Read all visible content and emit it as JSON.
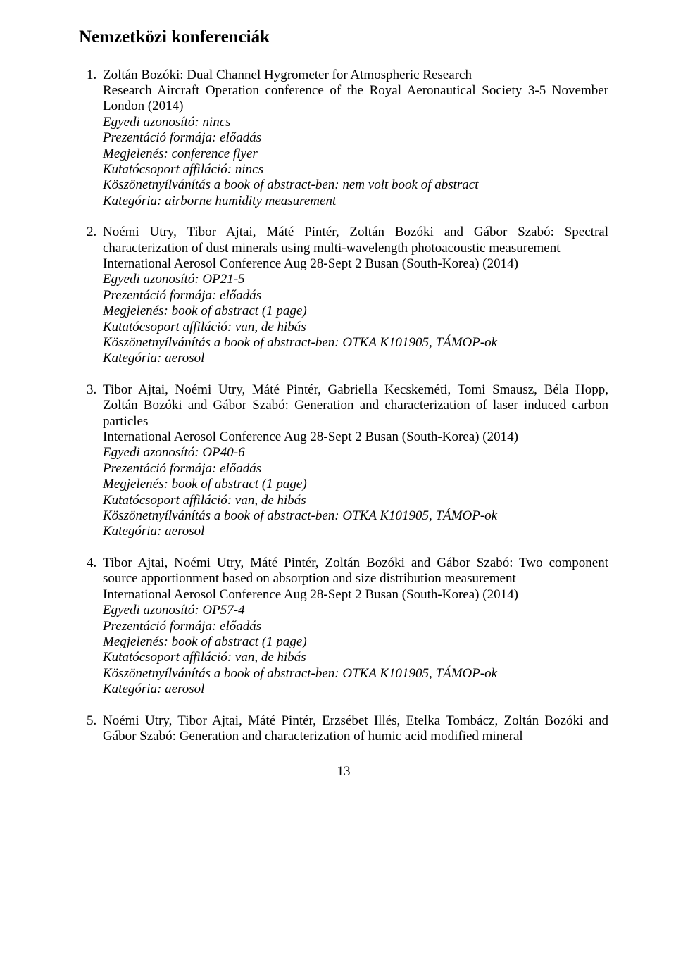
{
  "heading": "Nemzetközi konferenciák",
  "entries": [
    {
      "title": "Zoltán Bozóki: Dual Channel Hygrometer for Atmospheric Research",
      "conference": "Research Aircraft Operation conference of the Royal Aeronautical Society 3-5 November London (2014)",
      "id": "Egyedi azonosító: nincs",
      "form": "Prezentáció formája: előadás",
      "pub": "Megjelenés: conference flyer",
      "affil": "Kutatócsoport affiláció: nincs",
      "ack": "Köszönetnyílvánítás a book of abstract-ben: nem volt book of abstract",
      "cat": "Kategória: airborne humidity measurement"
    },
    {
      "title": "Noémi Utry, Tibor Ajtai, Máté Pintér, Zoltán Bozóki and Gábor Szabó: Spectral characterization of dust minerals using multi-wavelength photoacoustic measurement",
      "conference": "International Aerosol Conference Aug 28-Sept 2 Busan (South-Korea) (2014)",
      "id": "Egyedi azonosító: OP21-5",
      "form": "Prezentáció formája: előadás",
      "pub": "Megjelenés: book of abstract (1 page)",
      "affil": "Kutatócsoport affiláció: van, de hibás",
      "ack": "Köszönetnyílvánítás a book of abstract-ben: OTKA K101905, TÁMOP-ok",
      "cat": "Kategória: aerosol"
    },
    {
      "title": "Tibor Ajtai, Noémi Utry, Máté Pintér, Gabriella Kecskeméti, Tomi Smausz, Béla Hopp, Zoltán Bozóki and Gábor Szabó: Generation and characterization of laser induced carbon particles",
      "conference": "International Aerosol Conference Aug 28-Sept 2 Busan (South-Korea) (2014)",
      "id": "Egyedi azonosító: OP40-6",
      "form": "Prezentáció formája: előadás",
      "pub": "Megjelenés: book of abstract (1 page)",
      "affil": "Kutatócsoport affiláció: van, de hibás",
      "ack": "Köszönetnyílvánítás a book of abstract-ben: OTKA K101905, TÁMOP-ok",
      "cat": "Kategória: aerosol"
    },
    {
      "title": "Tibor Ajtai, Noémi Utry, Máté Pintér, Zoltán Bozóki and Gábor Szabó: Two component source apportionment based on absorption and size distribution measurement",
      "conference": "International Aerosol Conference Aug 28-Sept 2 Busan (South-Korea) (2014)",
      "id": "Egyedi azonosító: OP57-4",
      "form": "Prezentáció formája: előadás",
      "pub": "Megjelenés: book of abstract (1 page)",
      "affil": "Kutatócsoport affiláció: van, de hibás",
      "ack": "Köszönetnyílvánítás a book of abstract-ben: OTKA K101905, TÁMOP-ok",
      "cat": "Kategória: aerosol"
    },
    {
      "title": "Noémi Utry, Tibor Ajtai, Máté Pintér, Erzsébet Illés, Etelka Tombácz, Zoltán Bozóki and Gábor Szabó: Generation and characterization of humic acid modified mineral"
    }
  ],
  "pagenum": "13"
}
